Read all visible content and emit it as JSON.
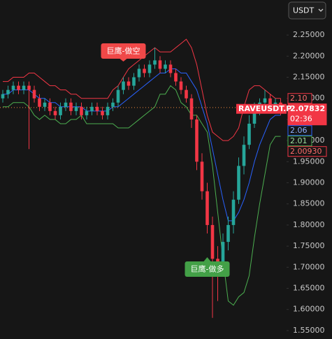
{
  "chart_data": {
    "type": "candlestick",
    "currency": "USDT",
    "symbol": "RAVEUSDT.P",
    "countdown": "02:36",
    "ylim": [
      1.53,
      2.333
    ],
    "yticks": [
      {
        "value": 2.25,
        "label": "2.25000"
      },
      {
        "value": 2.2,
        "label": "2.20000"
      },
      {
        "value": 2.15,
        "label": "2.15000"
      },
      {
        "value": 2.1,
        "label": "2.10000"
      },
      {
        "value": 2.05,
        "label": "2.05000"
      },
      {
        "value": 2.0,
        "label": "2.00000"
      },
      {
        "value": 1.95,
        "label": "1.95000"
      },
      {
        "value": 1.9,
        "label": "1.90000"
      },
      {
        "value": 1.85,
        "label": "1.85000"
      },
      {
        "value": 1.8,
        "label": "1.80000"
      },
      {
        "value": 1.75,
        "label": "1.75000"
      },
      {
        "value": 1.7,
        "label": "1.70000"
      },
      {
        "value": 1.65,
        "label": "1.65000"
      },
      {
        "value": 1.6,
        "label": "1.60000"
      },
      {
        "value": 1.55,
        "label": "1.55000"
      }
    ],
    "up_color": "#26a69a",
    "down_color": "#f23645",
    "open": [
      2.1,
      2.11,
      2.12,
      2.13,
      2.12,
      2.13,
      2.12,
      2.1,
      2.08,
      2.09,
      2.07,
      2.06,
      2.08,
      2.09,
      2.07,
      2.08,
      2.06,
      2.07,
      2.08,
      2.07,
      2.06,
      2.08,
      2.09,
      2.12,
      2.14,
      2.13,
      2.15,
      2.17,
      2.16,
      2.18,
      2.19,
      2.17,
      2.18,
      2.16,
      2.14,
      2.12,
      2.1,
      2.05,
      1.95,
      1.88,
      1.8,
      1.72,
      1.7,
      1.76,
      1.8,
      1.86,
      1.94,
      1.99,
      2.04,
      2.07,
      2.09,
      2.1,
      2.08,
      2.09
    ],
    "high": [
      2.12,
      2.13,
      2.14,
      2.14,
      2.14,
      2.14,
      2.13,
      2.11,
      2.1,
      2.1,
      2.08,
      2.09,
      2.1,
      2.1,
      2.09,
      2.09,
      2.08,
      2.09,
      2.09,
      2.08,
      2.09,
      2.1,
      2.13,
      2.15,
      2.15,
      2.16,
      2.18,
      2.18,
      2.19,
      2.22,
      2.2,
      2.19,
      2.19,
      2.17,
      2.15,
      2.13,
      2.11,
      2.06,
      1.97,
      1.9,
      1.82,
      1.75,
      1.78,
      1.82,
      1.88,
      1.96,
      2.01,
      2.06,
      2.09,
      2.1,
      2.12,
      2.11,
      2.1,
      2.1
    ],
    "low": [
      2.09,
      2.1,
      2.11,
      2.11,
      2.11,
      1.98,
      2.09,
      2.07,
      2.07,
      2.06,
      2.05,
      2.05,
      2.07,
      2.06,
      2.06,
      2.05,
      2.05,
      2.06,
      2.06,
      2.05,
      2.05,
      2.07,
      2.08,
      2.11,
      2.12,
      2.12,
      2.14,
      2.15,
      2.15,
      2.17,
      2.16,
      2.16,
      2.15,
      2.13,
      2.11,
      2.09,
      2.03,
      1.93,
      1.86,
      1.78,
      1.58,
      1.62,
      1.68,
      1.74,
      1.78,
      1.85,
      1.92,
      1.98,
      2.03,
      2.06,
      2.07,
      2.07,
      2.07,
      2.06
    ],
    "close": [
      2.11,
      2.12,
      2.13,
      2.12,
      2.13,
      2.12,
      2.1,
      2.08,
      2.09,
      2.07,
      2.06,
      2.08,
      2.09,
      2.07,
      2.08,
      2.06,
      2.07,
      2.08,
      2.07,
      2.06,
      2.08,
      2.09,
      2.12,
      2.14,
      2.13,
      2.15,
      2.17,
      2.16,
      2.18,
      2.19,
      2.17,
      2.18,
      2.16,
      2.14,
      2.12,
      2.1,
      2.05,
      1.95,
      1.88,
      1.8,
      1.72,
      1.7,
      1.76,
      1.8,
      1.86,
      1.94,
      1.99,
      2.04,
      2.07,
      2.09,
      2.1,
      2.08,
      2.09,
      2.07832
    ],
    "series": [
      {
        "name": "upper",
        "color": "#f23645",
        "values": [
          2.14,
          2.14,
          2.15,
          2.15,
          2.15,
          2.16,
          2.16,
          2.15,
          2.14,
          2.13,
          2.13,
          2.12,
          2.12,
          2.11,
          2.11,
          2.1,
          2.1,
          2.1,
          2.1,
          2.1,
          2.1,
          2.12,
          2.13,
          2.15,
          2.17,
          2.18,
          2.19,
          2.2,
          2.21,
          2.22,
          2.21,
          2.21,
          2.21,
          2.22,
          2.23,
          2.24,
          2.22,
          2.18,
          2.12,
          2.06,
          2.02,
          2.01,
          2.0,
          2.0,
          2.01,
          2.03,
          2.08,
          2.12,
          2.13,
          2.13,
          2.12,
          2.11,
          2.1,
          2.1
        ]
      },
      {
        "name": "middle",
        "color": "#2962ff",
        "values": [
          2.11,
          2.11,
          2.12,
          2.12,
          2.12,
          2.12,
          2.11,
          2.1,
          2.1,
          2.09,
          2.09,
          2.08,
          2.08,
          2.08,
          2.08,
          2.08,
          2.07,
          2.07,
          2.07,
          2.07,
          2.07,
          2.08,
          2.08,
          2.09,
          2.1,
          2.11,
          2.12,
          2.13,
          2.14,
          2.15,
          2.16,
          2.16,
          2.17,
          2.17,
          2.16,
          2.16,
          2.14,
          2.12,
          2.08,
          2.04,
          1.98,
          1.92,
          1.86,
          1.81,
          1.81,
          1.83,
          1.86,
          1.9,
          1.95,
          1.99,
          2.02,
          2.05,
          2.06,
          2.06
        ]
      },
      {
        "name": "lower",
        "color": "#4caf50",
        "values": [
          2.08,
          2.08,
          2.09,
          2.09,
          2.09,
          2.08,
          2.06,
          2.05,
          2.06,
          2.05,
          2.05,
          2.04,
          2.04,
          2.05,
          2.05,
          2.06,
          2.04,
          2.04,
          2.04,
          2.04,
          2.04,
          2.04,
          2.03,
          2.03,
          2.03,
          2.04,
          2.05,
          2.06,
          2.07,
          2.08,
          2.11,
          2.11,
          2.13,
          2.12,
          2.09,
          2.08,
          2.06,
          2.06,
          2.04,
          2.02,
          1.94,
          1.83,
          1.72,
          1.62,
          1.61,
          1.63,
          1.64,
          1.68,
          1.77,
          1.85,
          1.92,
          1.99,
          2.01,
          2.01
        ]
      }
    ],
    "badges": [
      {
        "value": 2.1,
        "label": "2.10",
        "color": "#f23645"
      },
      {
        "value": 2.07832,
        "label": "2.07832",
        "color": "#f23645"
      },
      {
        "value": 2.06,
        "label": "2.06",
        "color": "#2962ff"
      },
      {
        "value": 2.01,
        "label": "2.01",
        "color": "#4caf50"
      },
      {
        "value": 2.0093,
        "label": "2.00930",
        "color": "#f23645"
      }
    ],
    "annotations": [
      {
        "text": "巨鹰-做空",
        "color": "#f04848"
      },
      {
        "text": "巨鹰-做多",
        "color": "#43a047"
      }
    ]
  }
}
